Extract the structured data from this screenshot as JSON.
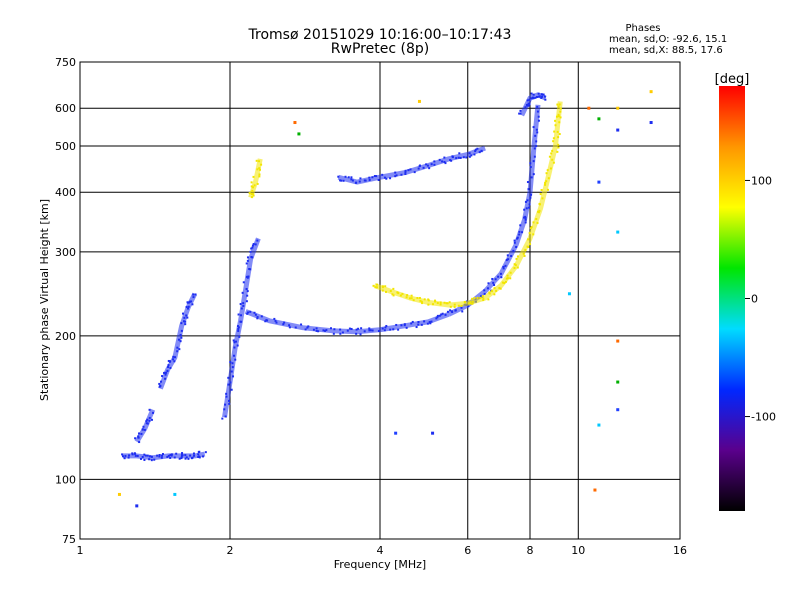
{
  "chart_data": {
    "type": "scatter",
    "title": "Tromsø 20151029 10:16:00–10:17:43",
    "subtitle": "RwPretec (8p)",
    "xlabel": "Frequency [MHz]",
    "ylabel": "Stationary phase Virtual Height [km]",
    "x_scale": "log",
    "y_scale": "log",
    "xlim": [
      1,
      16
    ],
    "ylim": [
      75,
      750
    ],
    "x_ticks": [
      1,
      2,
      4,
      6,
      8,
      10,
      16
    ],
    "y_ticks": [
      75,
      100,
      200,
      300,
      400,
      500,
      600,
      750
    ],
    "grid": true,
    "legend": {
      "title": "Phases",
      "entries": [
        "mean, sd,O: -92.6, 15.1",
        "mean, sd,X: 88.5, 17.6"
      ]
    },
    "colorbar": {
      "label": "[deg]",
      "range": [
        -180,
        180
      ],
      "ticks": [
        100,
        0,
        -100
      ],
      "stops": [
        "#000000",
        "#5a008c",
        "#0028ff",
        "#00dcff",
        "#00e600",
        "#ffff00",
        "#ff9600",
        "#ff0000"
      ]
    },
    "series": [
      {
        "name": "O-mode trace (blue)",
        "color": "#1e2ef0",
        "segments": [
          [
            [
              1.22,
              112
            ],
            [
              1.3,
              112
            ],
            [
              1.4,
              111
            ],
            [
              1.5,
              112
            ],
            [
              1.6,
              112
            ],
            [
              1.7,
              112
            ],
            [
              1.78,
              113
            ]
          ],
          [
            [
              1.45,
              155
            ],
            [
              1.5,
              170
            ],
            [
              1.55,
              180
            ],
            [
              1.6,
              210
            ],
            [
              1.65,
              230
            ],
            [
              1.7,
              245
            ]
          ],
          [
            [
              1.3,
              120
            ],
            [
              1.35,
              128
            ],
            [
              1.4,
              140
            ]
          ],
          [
            [
              1.95,
              135
            ],
            [
              2.0,
              160
            ],
            [
              2.05,
              190
            ],
            [
              2.1,
              215
            ],
            [
              2.15,
              250
            ],
            [
              2.2,
              290
            ],
            [
              2.28,
              320
            ]
          ],
          [
            [
              2.15,
              225
            ],
            [
              2.4,
              215
            ],
            [
              2.8,
              208
            ],
            [
              3.2,
              205
            ],
            [
              3.6,
              204
            ],
            [
              4.0,
              206
            ],
            [
              4.5,
              210
            ],
            [
              5.0,
              214
            ],
            [
              5.5,
              222
            ]
          ],
          [
            [
              5.5,
              222
            ],
            [
              6.0,
              232
            ],
            [
              6.5,
              248
            ],
            [
              7.0,
              270
            ],
            [
              7.5,
              310
            ],
            [
              7.8,
              350
            ],
            [
              8.0,
              400
            ],
            [
              8.15,
              500
            ],
            [
              8.3,
              610
            ]
          ],
          [
            [
              3.3,
              430
            ],
            [
              3.6,
              420
            ],
            [
              4.0,
              430
            ],
            [
              4.5,
              440
            ],
            [
              5.0,
              455
            ],
            [
              5.5,
              470
            ],
            [
              6.0,
              480
            ],
            [
              6.5,
              495
            ]
          ],
          [
            [
              7.7,
              580
            ],
            [
              8.0,
              630
            ],
            [
              8.3,
              640
            ],
            [
              8.6,
              630
            ]
          ]
        ]
      },
      {
        "name": "X-mode trace (yellow)",
        "color": "#f2e600",
        "segments": [
          [
            [
              3.9,
              255
            ],
            [
              4.2,
              248
            ],
            [
              4.6,
              240
            ],
            [
              5.0,
              235
            ],
            [
              5.5,
              232
            ],
            [
              6.0,
              234
            ],
            [
              6.5,
              240
            ],
            [
              7.0,
              255
            ],
            [
              7.5,
              280
            ],
            [
              8.0,
              320
            ],
            [
              8.4,
              370
            ],
            [
              8.7,
              430
            ],
            [
              9.0,
              500
            ],
            [
              9.1,
              560
            ],
            [
              9.2,
              620
            ]
          ],
          [
            [
              2.2,
              390
            ],
            [
              2.25,
              420
            ],
            [
              2.3,
              470
            ]
          ]
        ]
      },
      {
        "name": "scattered points",
        "color": "#888888",
        "points": [
          [
            1.2,
            93
          ],
          [
            1.3,
            88
          ],
          [
            1.55,
            93
          ],
          [
            2.7,
            560
          ],
          [
            2.75,
            530
          ],
          [
            4.3,
            125
          ],
          [
            4.8,
            620
          ],
          [
            5.1,
            125
          ],
          [
            9.6,
            245
          ],
          [
            10.5,
            600
          ],
          [
            11,
            570
          ],
          [
            11,
            420
          ],
          [
            12,
            600
          ],
          [
            12,
            540
          ],
          [
            12,
            330
          ],
          [
            12,
            195
          ],
          [
            12,
            160
          ],
          [
            12,
            140
          ],
          [
            14,
            650
          ],
          [
            14,
            560
          ],
          [
            11,
            130
          ],
          [
            10.8,
            95
          ]
        ]
      }
    ]
  }
}
